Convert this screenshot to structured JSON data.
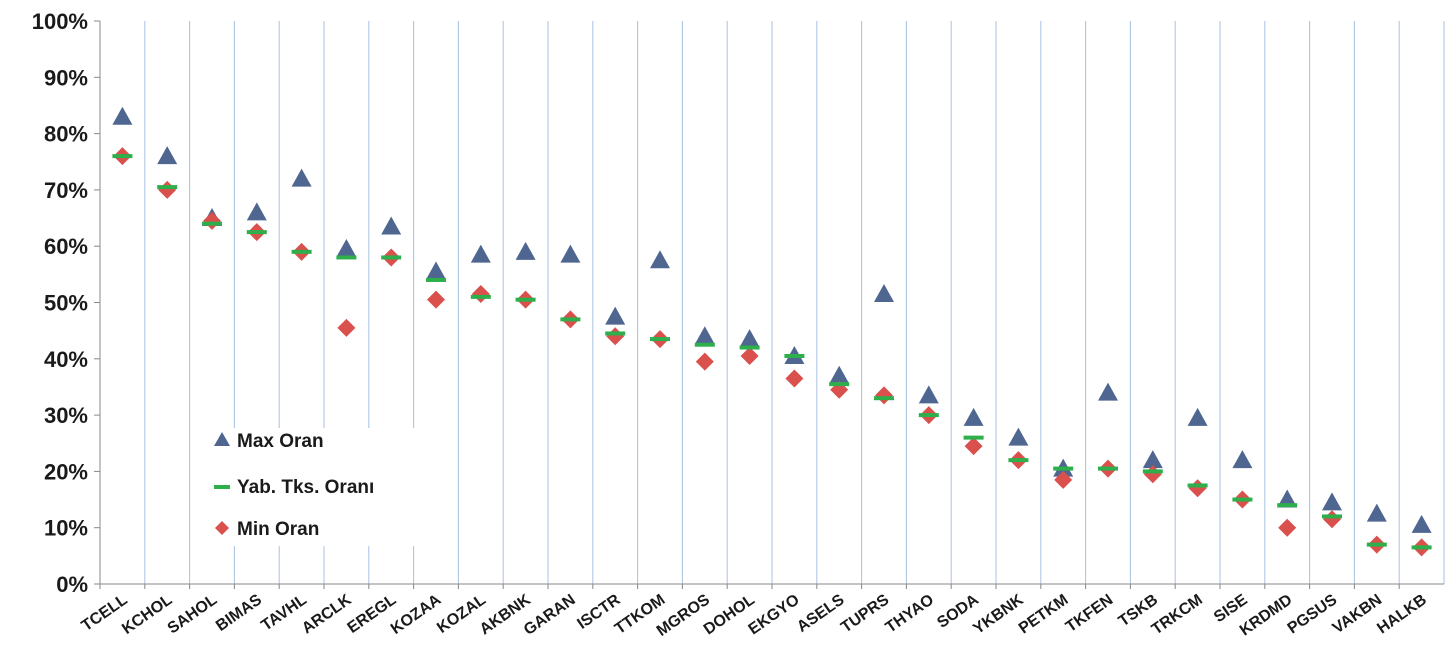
{
  "chart_data": {
    "type": "scatter",
    "categories": [
      "TCELL",
      "KCHOL",
      "SAHOL",
      "BIMAS",
      "TAVHL",
      "ARCLK",
      "EREGL",
      "KOZAA",
      "KOZAL",
      "AKBNK",
      "GARAN",
      "ISCTR",
      "TTKOM",
      "MGROS",
      "DOHOL",
      "EKGYO",
      "ASELS",
      "TUPRS",
      "THYAO",
      "SODA",
      "YKBNK",
      "PETKM",
      "TKFEN",
      "TSKB",
      "TRKCM",
      "SISE",
      "KRDMD",
      "PGSUS",
      "VAKBN",
      "HALKB"
    ],
    "series": [
      {
        "name": "Max Oran",
        "marker": "triangle",
        "color": "#4f6690",
        "values": [
          83,
          76,
          65,
          66,
          72,
          59.5,
          63.5,
          55.5,
          58.5,
          59,
          58.5,
          47.5,
          57.5,
          44,
          43.5,
          40.5,
          37,
          51.5,
          33.5,
          29.5,
          26,
          20.5,
          34,
          22,
          29.5,
          22,
          15,
          14.5,
          12.5,
          10.5
        ]
      },
      {
        "name": "Yab. Tks. Oranı",
        "marker": "dash",
        "color": "#2db04b",
        "values": [
          76,
          70.5,
          64,
          62.5,
          59,
          58,
          58,
          54,
          51,
          50.5,
          47,
          44.5,
          43.5,
          42.5,
          42,
          40.5,
          35.5,
          33,
          30,
          26,
          22,
          20.5,
          20.5,
          20,
          17.5,
          15,
          14,
          12,
          7,
          6.5
        ]
      },
      {
        "name": "Min Oran",
        "marker": "diamond",
        "color": "#d9504d",
        "values": [
          76,
          70,
          64.5,
          62.5,
          59,
          45.5,
          58,
          50.5,
          51.5,
          50.5,
          47,
          44,
          43.5,
          39.5,
          40.5,
          36.5,
          34.5,
          33.5,
          30,
          24.5,
          22,
          18.5,
          20.5,
          19.5,
          17,
          15,
          10,
          11.5,
          7,
          6.5
        ]
      }
    ],
    "yticks": [
      "0%",
      "10%",
      "20%",
      "30%",
      "40%",
      "50%",
      "60%",
      "70%",
      "80%",
      "90%",
      "100%"
    ],
    "ylim": [
      0,
      100
    ],
    "grid": "vertical",
    "gridColor": "#a9c0e0",
    "legend": "bottom-left inside"
  }
}
